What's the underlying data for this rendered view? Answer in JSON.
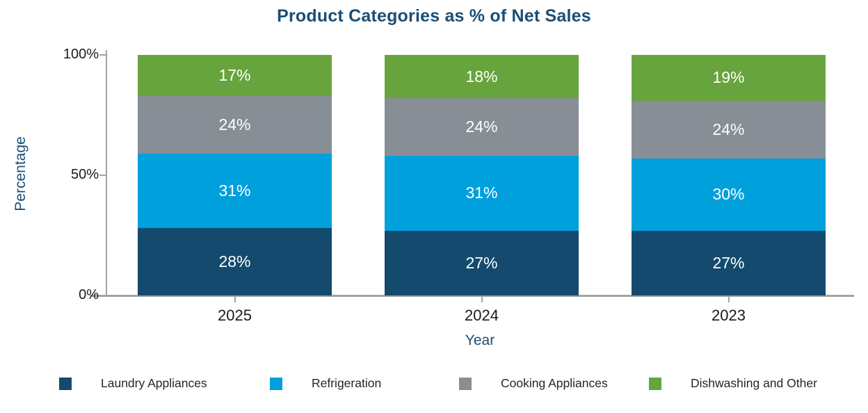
{
  "chart_data": {
    "type": "bar",
    "stacked": true,
    "title": "Product Categories as % of Net Sales",
    "xlabel": "Year",
    "ylabel": "Percentage",
    "categories": [
      "2025",
      "2024",
      "2023"
    ],
    "series": [
      {
        "name": "Laundry Appliances",
        "color": "#144a6e",
        "values": [
          28,
          27,
          27
        ],
        "labels": [
          "28%",
          "27%",
          "27%"
        ]
      },
      {
        "name": "Refrigeration",
        "color": "#00a0dc",
        "values": [
          31,
          31,
          30
        ],
        "labels": [
          "31%",
          "31%",
          "30%"
        ]
      },
      {
        "name": "Cooking Appliances",
        "color": "#878e95",
        "values": [
          24,
          24,
          24
        ],
        "labels": [
          "24%",
          "24%",
          "24%"
        ]
      },
      {
        "name": "Dishwashing and Other",
        "color": "#68a43d",
        "values": [
          17,
          18,
          19
        ],
        "labels": [
          "17%",
          "18%",
          "19%"
        ]
      }
    ],
    "y_axis": {
      "ylim": [
        0,
        100
      ],
      "ticks": [
        {
          "label": "0%",
          "value": 0
        },
        {
          "label": "50%",
          "value": 50
        },
        {
          "label": "100%",
          "value": 100
        }
      ]
    },
    "grid": false,
    "legend_position": "bottom"
  },
  "colors": {
    "title": "#1c4e74",
    "axis_line": "#a3a3a3",
    "tick_text": "#1a1a1a",
    "bar_label": "#ffffff",
    "legend_text": "#262626"
  }
}
